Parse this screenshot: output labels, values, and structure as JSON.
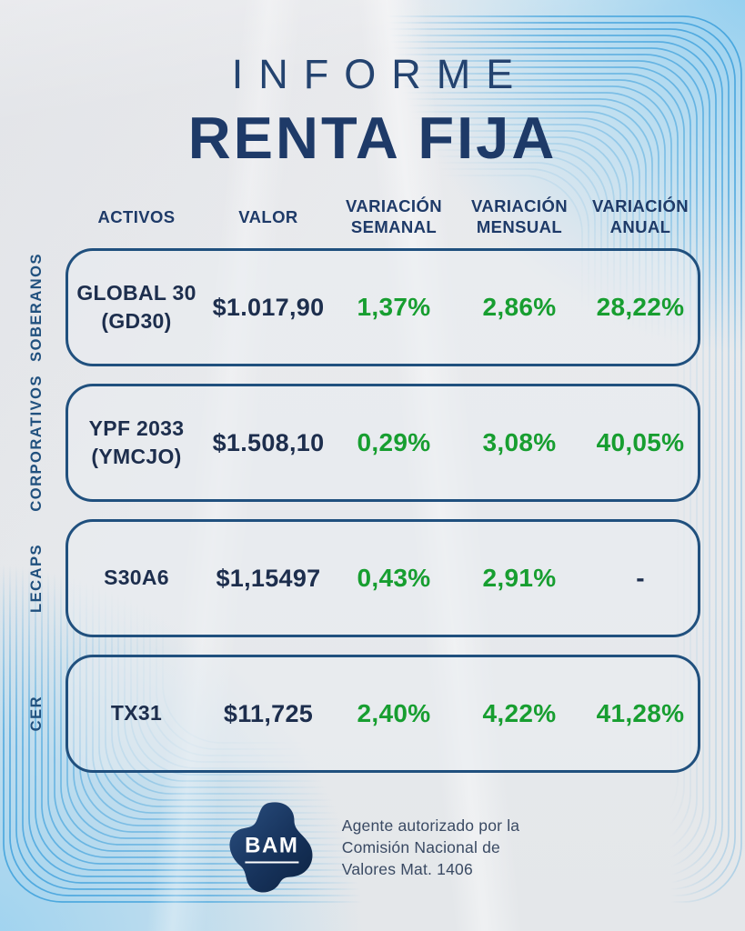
{
  "title": {
    "kicker": "INFORME",
    "main": "RENTA FIJA"
  },
  "headers": [
    {
      "line1": "ACTIVOS",
      "line2": ""
    },
    {
      "line1": "VALOR",
      "line2": ""
    },
    {
      "line1": "VARIACIÓN",
      "line2": "SEMANAL"
    },
    {
      "line1": "VARIACIÓN",
      "line2": "MENSUAL"
    },
    {
      "line1": "VARIACIÓN",
      "line2": "ANUAL"
    }
  ],
  "rows": [
    {
      "category": "SOBERANOS",
      "asset_line1": "GLOBAL 30",
      "asset_line2": "(GD30)",
      "valor": "$1.017,90",
      "semanal": "1,37%",
      "mensual": "2,86%",
      "anual": "28,22%"
    },
    {
      "category": "CORPORATIVOS",
      "asset_line1": "YPF 2033",
      "asset_line2": "(YMCJO)",
      "valor": "$1.508,10",
      "semanal": "0,29%",
      "mensual": "3,08%",
      "anual": "40,05%"
    },
    {
      "category": "LECAPS",
      "asset_line1": "S30A6",
      "asset_line2": "",
      "valor": "$1,15497",
      "semanal": "0,43%",
      "mensual": "2,91%",
      "anual": "-"
    },
    {
      "category": "CER",
      "asset_line1": "TX31",
      "asset_line2": "",
      "valor": "$11,725",
      "semanal": "2,40%",
      "mensual": "4,22%",
      "anual": "41,28%"
    }
  ],
  "footer": {
    "logo_text": "BAM",
    "line1": "Agente autorizado por la",
    "line2": "Comisión Nacional de",
    "line3": "Valores Mat. 1406"
  },
  "colors": {
    "navy": "#1e3a68",
    "dark_text": "#1d2e4d",
    "green": "#179e30",
    "box_border": "#20507e",
    "ripple": "#41a2dc",
    "blue_tint": "#9fd6f1"
  }
}
